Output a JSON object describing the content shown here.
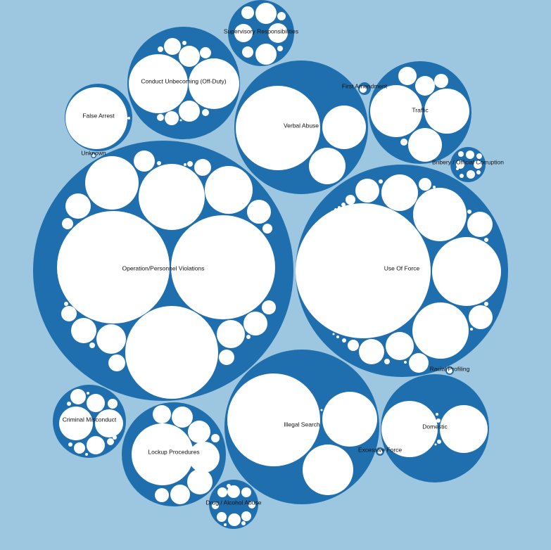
{
  "colors": {
    "background": "#9dc7e1",
    "group": "#1f6fae",
    "leaf": "#ffffff"
  },
  "groups": [
    {
      "key": "operation-personnel-violations",
      "label": "Operation/Personnel Violations"
    },
    {
      "key": "use-of-force",
      "label": "Use Of Force"
    },
    {
      "key": "illegal-search",
      "label": "Illegal Search"
    },
    {
      "key": "verbal-abuse",
      "label": "Verbal Abuse"
    },
    {
      "key": "conduct-unbecoming",
      "label": "Conduct Unbecoming (Off-Duty)"
    },
    {
      "key": "traffic",
      "label": "Traffic"
    },
    {
      "key": "domestic",
      "label": "Domestic"
    },
    {
      "key": "lockup-procedures",
      "label": "Lockup Procedures"
    },
    {
      "key": "criminal-misconduct",
      "label": "Criminal Misconduct"
    },
    {
      "key": "supervisory-responsibilities",
      "label": "Supervisory Responsibilities"
    },
    {
      "key": "false-arrest",
      "label": "False Arrest"
    },
    {
      "key": "drug-alcohol-abuse",
      "label": "Drug / Alcohol Abuse"
    },
    {
      "key": "bribery-official-corruption",
      "label": "Bribery / Official Corruption"
    },
    {
      "key": "first-amendment",
      "label": "First Amendment"
    },
    {
      "key": "racial-profiling",
      "label": "Racial Profiling"
    },
    {
      "key": "excessive-force",
      "label": "Excessive Force"
    },
    {
      "key": "unknown",
      "label": "Unknown"
    }
  ]
}
